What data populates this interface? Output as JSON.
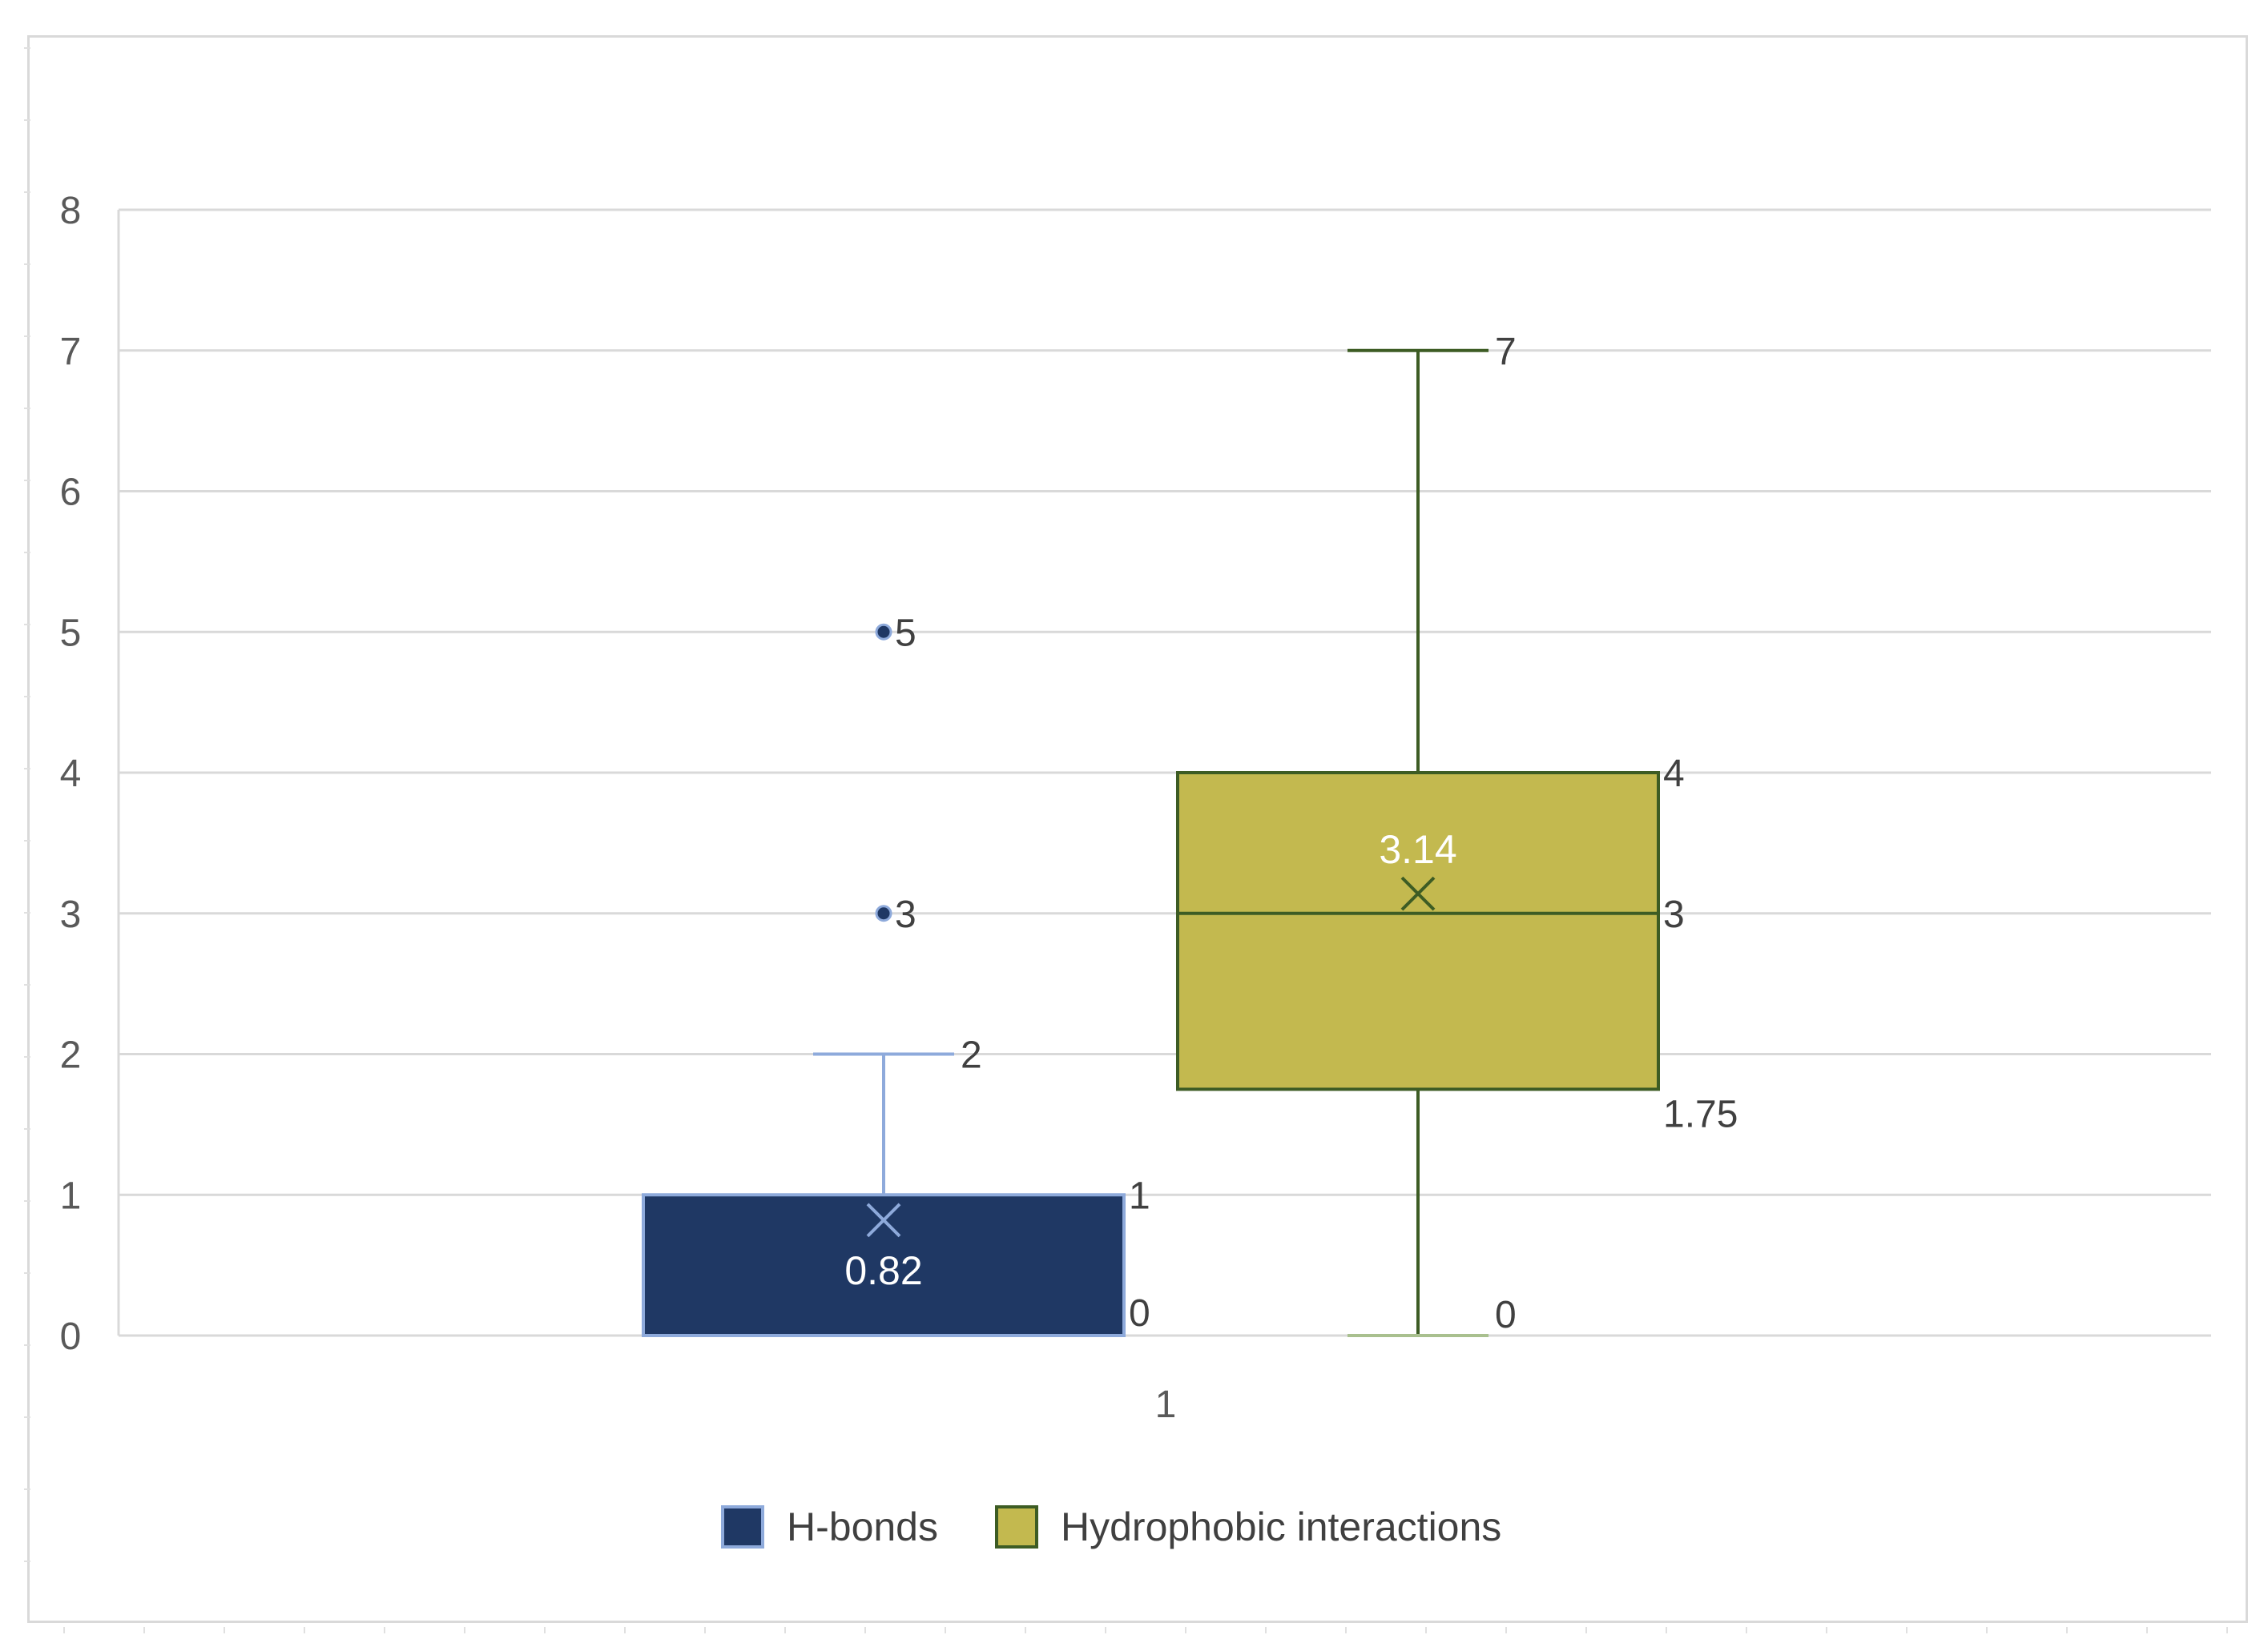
{
  "chart_data": {
    "type": "box",
    "title": "",
    "xlabel": "",
    "ylabel": "",
    "categories": [
      "1"
    ],
    "ylim": [
      0,
      8
    ],
    "yticks": [
      0,
      1,
      2,
      3,
      4,
      5,
      6,
      7,
      8
    ],
    "grid": true,
    "legend_position": "bottom",
    "series": [
      {
        "name": "H-bonds",
        "color": "#1f3864",
        "edge_color": "#8eaadb",
        "min": 0,
        "q1": 0,
        "median": 0,
        "q3": 1,
        "whisker_high": 2,
        "mean": 0.82,
        "outliers": [
          3,
          5
        ],
        "labels": {
          "q3": "1",
          "q1": "0",
          "whisker_high": "2",
          "mean": "0.82",
          "outliers": [
            "3",
            "5"
          ]
        }
      },
      {
        "name": "Hydrophobic interactions",
        "color": "#c3b94f",
        "edge_color": "#3d5c24",
        "min": 0,
        "q1": 1.75,
        "median": 3,
        "q3": 4,
        "whisker_high": 7,
        "mean": 3.14,
        "outliers": [],
        "labels": {
          "q3": "4",
          "median": "3",
          "q1": "1.75",
          "whisker_high": "7",
          "min": "0",
          "mean": "3.14"
        }
      }
    ]
  }
}
